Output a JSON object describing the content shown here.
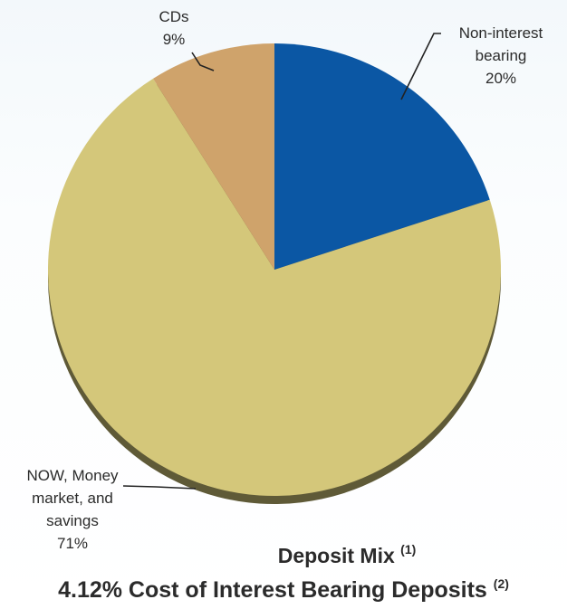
{
  "chart_data": {
    "type": "pie",
    "title": "Deposit Mix",
    "title_note": "(1)",
    "subtitle": "4.12% Cost of Interest Bearing Deposits",
    "subtitle_note": "(2)",
    "slices": [
      {
        "label_lines": [
          "Non-interest",
          "bearing"
        ],
        "pct_label": "20%",
        "value": 20,
        "color": "#0b57a4"
      },
      {
        "label_lines": [
          "NOW, Money",
          "market, and",
          "savings"
        ],
        "pct_label": "71%",
        "value": 71,
        "color": "#d4c77a"
      },
      {
        "label_lines": [
          "CDs"
        ],
        "pct_label": "9%",
        "value": 9,
        "color": "#cfa36b"
      }
    ],
    "start_angle_deg": 0,
    "direction": "clockwise",
    "legend": "none",
    "labels": "outside-with-leader-lines"
  }
}
